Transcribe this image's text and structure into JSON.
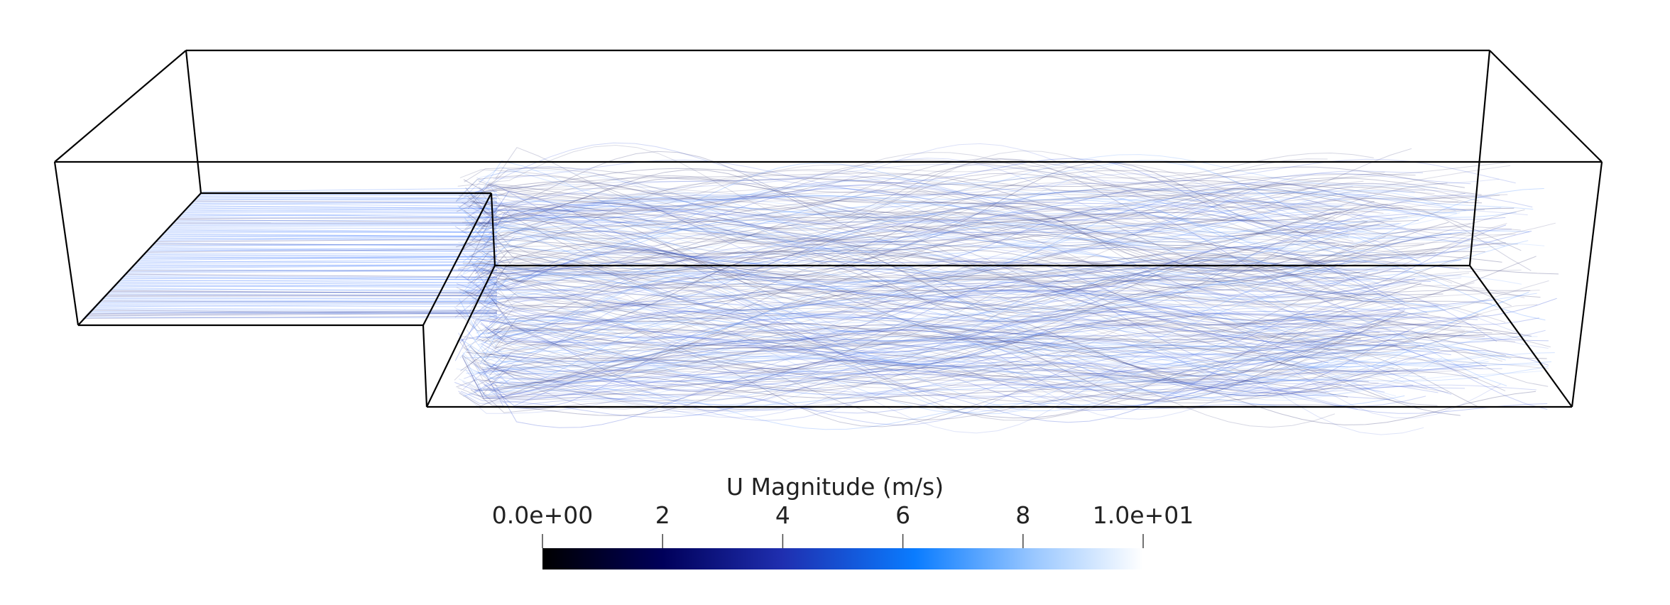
{
  "scalar_bar": {
    "title": "U Magnitude (m/s)",
    "range": [
      0,
      10
    ],
    "ticks": [
      {
        "value": 0,
        "label": "0.0e+00"
      },
      {
        "value": 2,
        "label": "2"
      },
      {
        "value": 4,
        "label": "4"
      },
      {
        "value": 6,
        "label": "6"
      },
      {
        "value": 8,
        "label": "8"
      },
      {
        "value": 10,
        "label": "1.0e+01"
      }
    ],
    "colormap": [
      "#000000",
      "#00005a",
      "#1f2fb0",
      "#0a7cff",
      "#9bc8ff",
      "#ffffff"
    ]
  },
  "scene": {
    "description_colors": {
      "outline": "#000000",
      "streamline_fast": "#3b7bff",
      "streamline_slow": "#3c3f7a"
    }
  }
}
